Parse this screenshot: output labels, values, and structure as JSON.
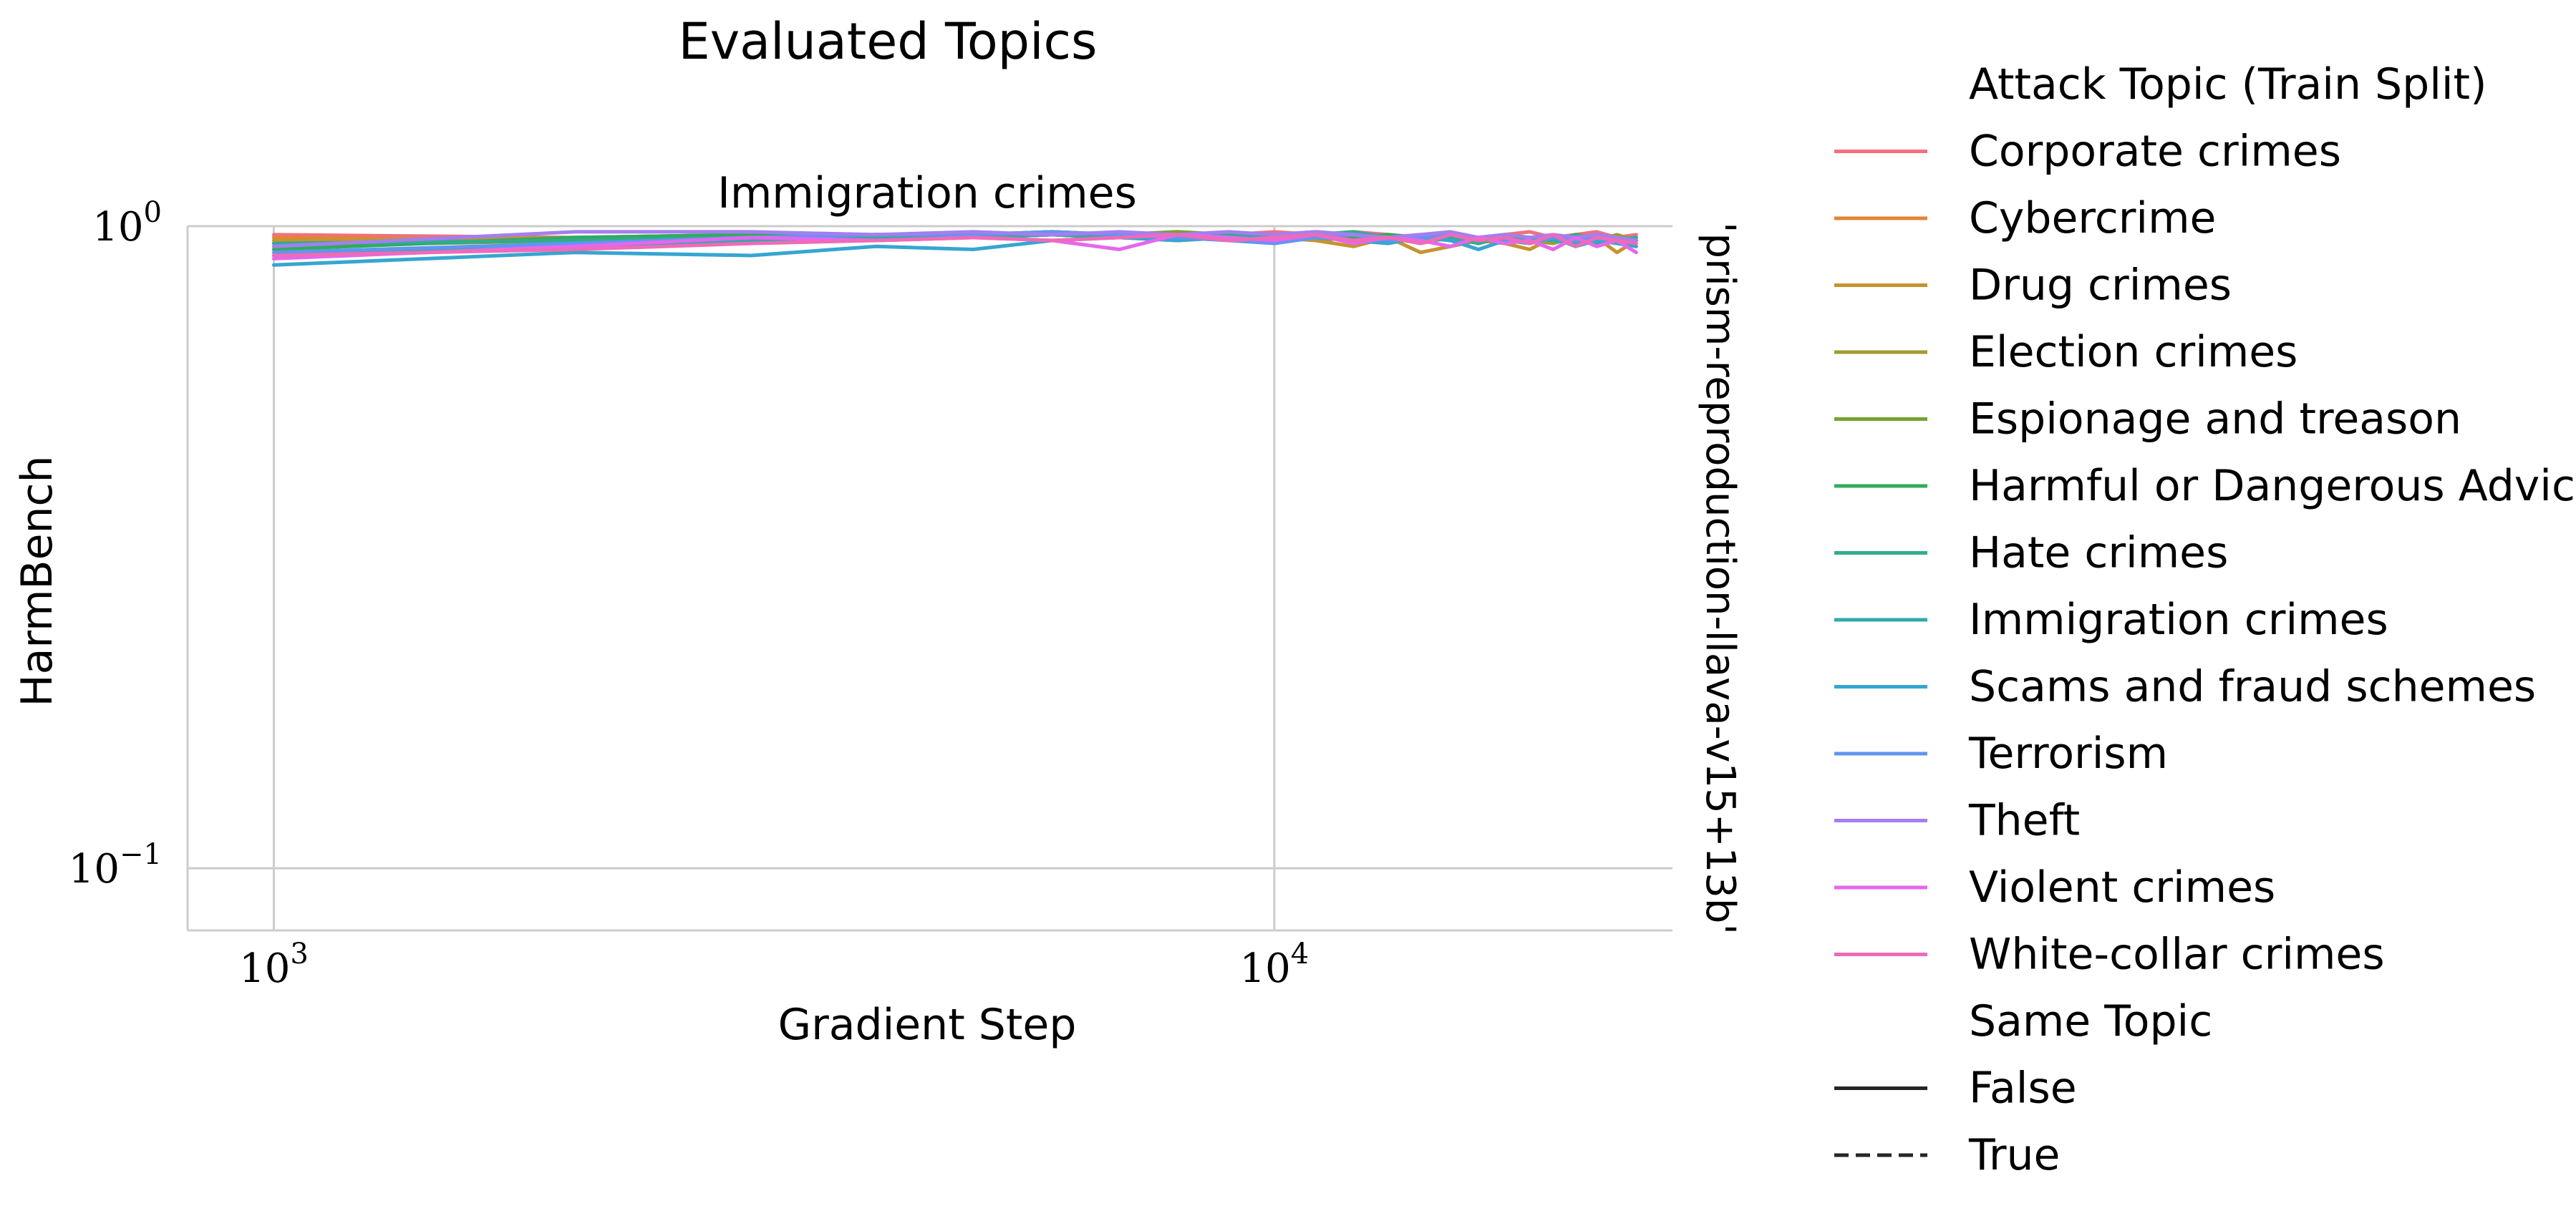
{
  "title": "Evaluated Topics",
  "chart_data": {
    "type": "line",
    "title": "Immigration crimes",
    "xlabel": "Gradient Step",
    "ylabel": "HarmBench",
    "row_label": "'prism-reproduction-llava-v15+13b'",
    "x_scale": "log",
    "y_scale": "log",
    "xlim": [
      820,
      25000
    ],
    "ylim": [
      0.08,
      1.0
    ],
    "xticks": [
      {
        "value": 1000,
        "base": "10",
        "exp": "3"
      },
      {
        "value": 10000,
        "base": "10",
        "exp": "4"
      }
    ],
    "yticks": [
      {
        "value": 0.1,
        "base": "10",
        "exp": "−1"
      },
      {
        "value": 1.0,
        "base": "10",
        "exp": "0"
      }
    ],
    "grid": true,
    "legend_placement": "outside right",
    "x": [
      1000,
      2000,
      3000,
      4000,
      5000,
      6000,
      7000,
      8000,
      9000,
      10000,
      11000,
      12000,
      13000,
      14000,
      15000,
      16000,
      17000,
      18000,
      19000,
      20000,
      21000,
      22000,
      23000
    ],
    "legend": {
      "hue_title": "Attack Topic (Train Split)",
      "style_title": "Same Topic",
      "styles": [
        {
          "label": "False",
          "dash": "solid"
        },
        {
          "label": "True",
          "dash": "dashed"
        }
      ]
    },
    "series": [
      {
        "name": "Corporate crimes",
        "color": "#f0717f",
        "values": [
          0.97,
          0.96,
          0.97,
          0.96,
          0.97,
          0.98,
          0.97,
          0.98,
          0.97,
          0.98,
          0.97,
          0.98,
          0.97,
          0.96,
          0.97,
          0.96,
          0.97,
          0.98,
          0.96,
          0.97,
          0.98,
          0.96,
          0.97
        ]
      },
      {
        "name": "Cybercrime",
        "color": "#e48534",
        "values": [
          0.96,
          0.95,
          0.96,
          0.95,
          0.96,
          0.97,
          0.96,
          0.95,
          0.96,
          0.97,
          0.95,
          0.96,
          0.96,
          0.94,
          0.96,
          0.95,
          0.96,
          0.95,
          0.97,
          0.94,
          0.96,
          0.95,
          0.93
        ]
      },
      {
        "name": "Drug crimes",
        "color": "#c79330",
        "values": [
          0.95,
          0.96,
          0.97,
          0.96,
          0.97,
          0.98,
          0.97,
          0.96,
          0.97,
          0.96,
          0.95,
          0.93,
          0.96,
          0.91,
          0.93,
          0.95,
          0.94,
          0.92,
          0.96,
          0.93,
          0.96,
          0.91,
          0.95
        ]
      },
      {
        "name": "Election crimes",
        "color": "#a39b2e",
        "values": [
          0.94,
          0.95,
          0.96,
          0.97,
          0.96,
          0.97,
          0.96,
          0.97,
          0.96,
          0.97,
          0.96,
          0.95,
          0.97,
          0.95,
          0.96,
          0.94,
          0.96,
          0.95,
          0.94,
          0.96,
          0.95,
          0.97,
          0.95
        ]
      },
      {
        "name": "Espionage and treason",
        "color": "#72a430",
        "values": [
          0.93,
          0.95,
          0.96,
          0.97,
          0.97,
          0.98,
          0.97,
          0.98,
          0.97,
          0.97,
          0.98,
          0.97,
          0.96,
          0.97,
          0.96,
          0.95,
          0.97,
          0.96,
          0.95,
          0.97,
          0.96,
          0.95,
          0.96
        ]
      },
      {
        "name": "Harmful or Dangerous Advice",
        "color": "#30ac5d",
        "values": [
          0.92,
          0.96,
          0.97,
          0.96,
          0.97,
          0.97,
          0.96,
          0.97,
          0.96,
          0.95,
          0.97,
          0.96,
          0.97,
          0.96,
          0.95,
          0.96,
          0.97,
          0.95,
          0.96,
          0.95,
          0.97,
          0.96,
          0.95
        ]
      },
      {
        "name": "Hate crimes",
        "color": "#32ab8f",
        "values": [
          0.94,
          0.95,
          0.96,
          0.97,
          0.96,
          0.97,
          0.96,
          0.96,
          0.97,
          0.96,
          0.97,
          0.98,
          0.96,
          0.95,
          0.96,
          0.94,
          0.97,
          0.96,
          0.95,
          0.97,
          0.94,
          0.96,
          0.95
        ]
      },
      {
        "name": "Immigration crimes",
        "color": "#34a9ab",
        "values": [
          0.9,
          0.93,
          0.95,
          0.96,
          0.96,
          0.97,
          0.96,
          0.97,
          0.96,
          0.97,
          0.96,
          0.95,
          0.96,
          0.97,
          0.95,
          0.96,
          0.94,
          0.96,
          0.95,
          0.94,
          0.96,
          0.95,
          0.96
        ]
      },
      {
        "name": "Scams and fraud schemes",
        "color": "#36a6d0",
        "values": [
          0.87,
          0.91,
          0.9,
          0.93,
          0.92,
          0.95,
          0.96,
          0.95,
          0.96,
          0.95,
          0.96,
          0.95,
          0.94,
          0.96,
          0.95,
          0.92,
          0.95,
          0.94,
          0.96,
          0.93,
          0.95,
          0.94,
          0.93
        ]
      },
      {
        "name": "Terrorism",
        "color": "#6394f0",
        "values": [
          0.91,
          0.94,
          0.96,
          0.97,
          0.97,
          0.98,
          0.97,
          0.96,
          0.95,
          0.94,
          0.96,
          0.97,
          0.95,
          0.96,
          0.97,
          0.95,
          0.96,
          0.94,
          0.96,
          0.95,
          0.96,
          0.95,
          0.94
        ]
      },
      {
        "name": "Theft",
        "color": "#a37ff0",
        "values": [
          0.93,
          0.98,
          0.98,
          0.97,
          0.98,
          0.97,
          0.98,
          0.97,
          0.98,
          0.97,
          0.98,
          0.97,
          0.96,
          0.97,
          0.98,
          0.96,
          0.97,
          0.96,
          0.97,
          0.96,
          0.97,
          0.96,
          0.95
        ]
      },
      {
        "name": "Violent crimes",
        "color": "#e567ee",
        "values": [
          0.89,
          0.93,
          0.96,
          0.95,
          0.96,
          0.95,
          0.92,
          0.97,
          0.96,
          0.95,
          0.97,
          0.94,
          0.96,
          0.95,
          0.93,
          0.96,
          0.94,
          0.95,
          0.92,
          0.96,
          0.93,
          0.95,
          0.91
        ]
      },
      {
        "name": "White-collar crimes",
        "color": "#f06ab8",
        "values": [
          0.9,
          0.92,
          0.94,
          0.95,
          0.96,
          0.95,
          0.96,
          0.97,
          0.95,
          0.96,
          0.97,
          0.95,
          0.96,
          0.94,
          0.97,
          0.95,
          0.96,
          0.94,
          0.97,
          0.93,
          0.96,
          0.95,
          0.94
        ]
      }
    ]
  }
}
